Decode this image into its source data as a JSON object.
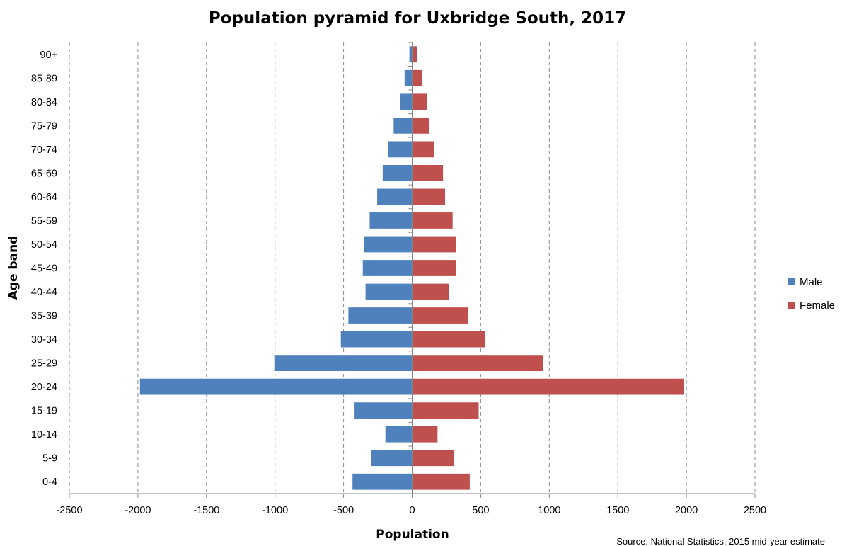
{
  "chart_data": {
    "type": "bar",
    "orientation": "horizontal",
    "title": "Population pyramid for Uxbridge South, 2017",
    "xlabel": "Population",
    "ylabel": "Age band",
    "source": "Source: National Statistics. 2015 mid-year estimate",
    "xlim": [
      -2500,
      2500
    ],
    "xticks": [
      -2500,
      -2000,
      -1500,
      -1000,
      -500,
      0,
      500,
      1000,
      1500,
      2000,
      2500
    ],
    "grid": "vertical dashed",
    "legend_position": "right",
    "categories": [
      "90+",
      "85-89",
      "80-84",
      "75-79",
      "70-74",
      "65-69",
      "60-64",
      "55-59",
      "50-54",
      "45-49",
      "40-44",
      "35-39",
      "30-34",
      "25-29",
      "20-24",
      "15-19",
      "10-14",
      "5-9",
      "0-4"
    ],
    "series": [
      {
        "name": "Male",
        "color": "#4F81BD",
        "values": [
          -20,
          -55,
          -85,
          -135,
          -175,
          -215,
          -255,
          -310,
          -350,
          -360,
          -340,
          -465,
          -520,
          -1005,
          -1985,
          -420,
          -195,
          -300,
          -435
        ]
      },
      {
        "name": "Female",
        "color": "#C0504D",
        "values": [
          35,
          70,
          110,
          125,
          160,
          225,
          240,
          295,
          320,
          320,
          270,
          405,
          530,
          955,
          1980,
          485,
          185,
          305,
          420
        ]
      }
    ]
  }
}
